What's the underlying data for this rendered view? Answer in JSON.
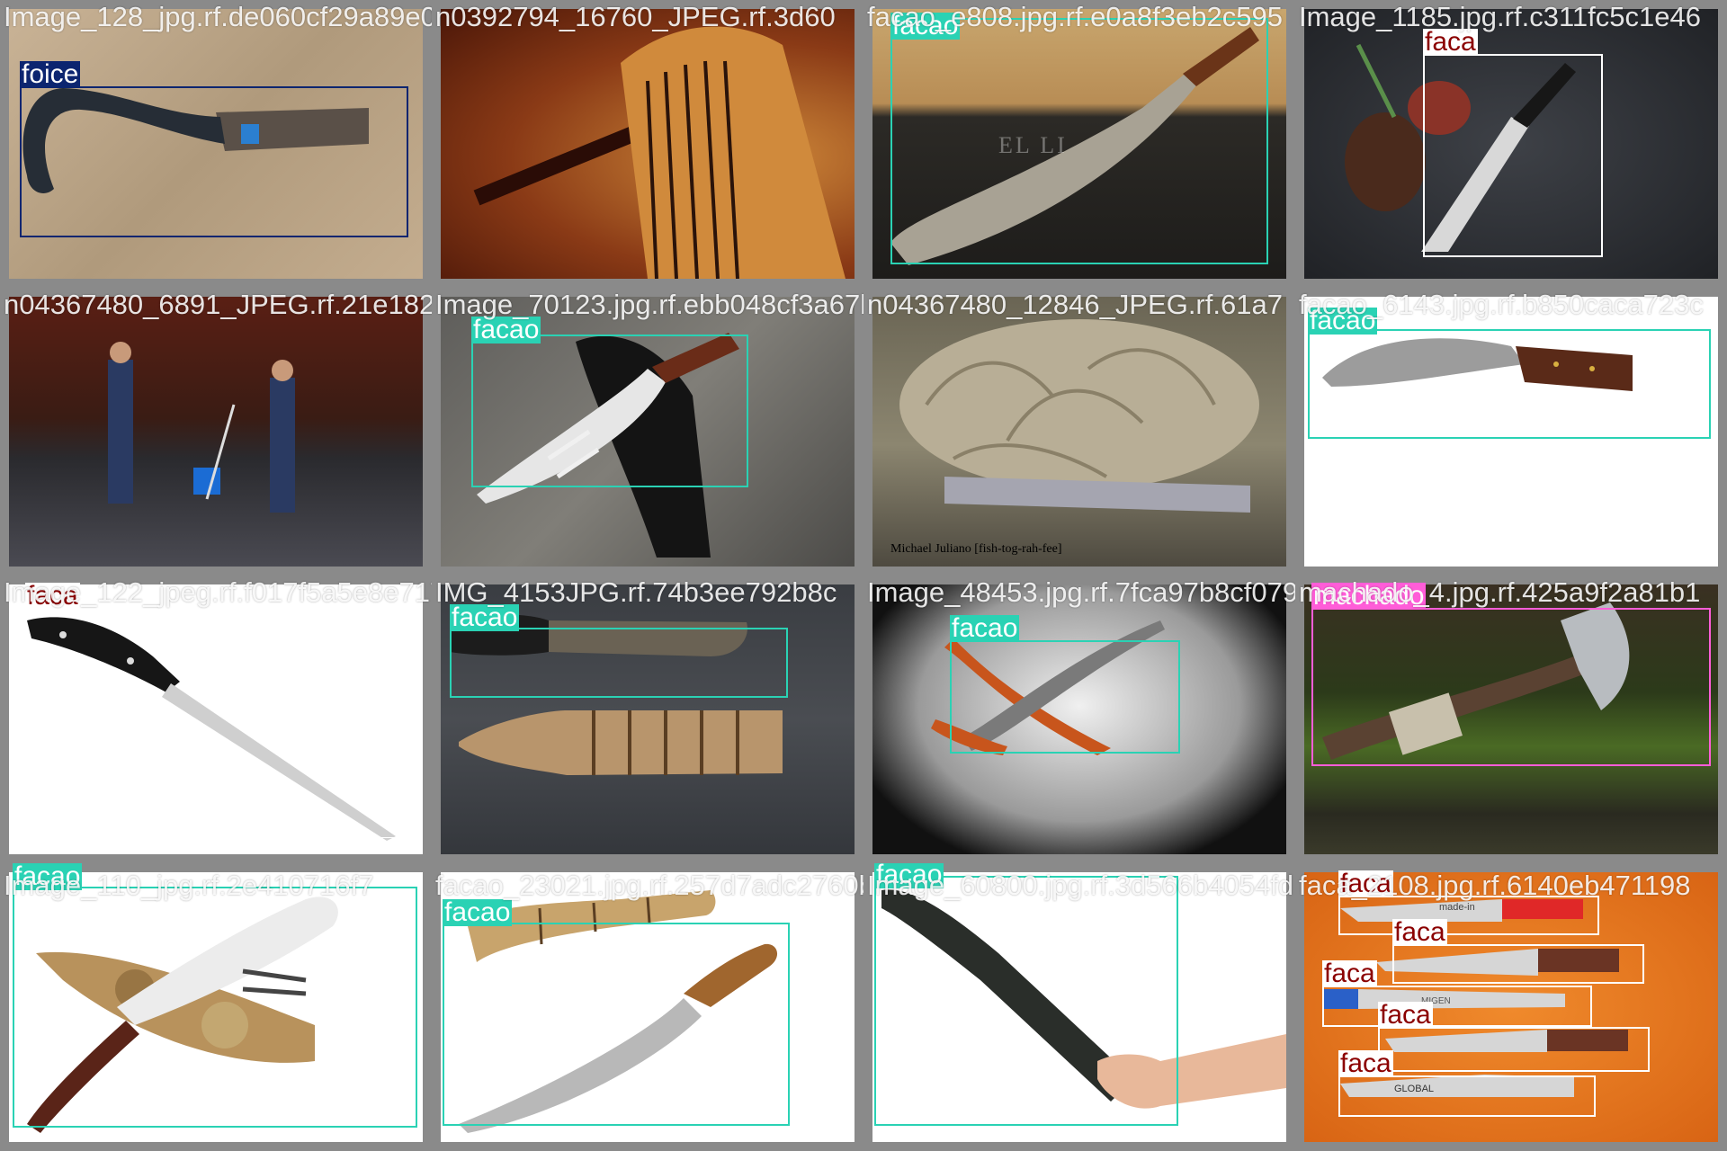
{
  "colors": {
    "faca": "#ffffff",
    "facao": "#2ad2b4",
    "foice": "#0c2570",
    "machado": "#ff5dd8",
    "tile_border": "#8a8a8a"
  },
  "tiles": [
    {
      "filename": "Image_128_jpg.rf.de060cf29a89e0092316293a",
      "scene": "foice-sand",
      "labels": [
        "foice"
      ]
    },
    {
      "filename": "n0392794_16760_JPEG.rf.3d60",
      "scene": "broom",
      "labels": []
    },
    {
      "filename": "facao_e808.jpg.rf.e0a8f3eb2c595",
      "scene": "machete-engraved",
      "labels": [
        "facao"
      ]
    },
    {
      "filename": "Image_1185.jpg.rf.c311fc5c1e46",
      "scene": "chef-knife-steak",
      "labels": [
        "faca"
      ]
    },
    {
      "filename": "n04367480_6891_JPEG.rf.21e182b7247012335",
      "scene": "mopping",
      "labels": []
    },
    {
      "filename": "Image_70123.jpg.rf.ebb048cf3a67b",
      "scene": "kukri-sheath",
      "labels": [
        "facao"
      ]
    },
    {
      "filename": "n04367480_12846_JPEG.rf.61a7",
      "scene": "mop-head",
      "labels": []
    },
    {
      "filename": "facao_6143.jpg.rf.b850caca723c",
      "scene": "kukri-white",
      "labels": [
        "facao"
      ]
    },
    {
      "filename": "Image_122_jpeg.rf.f017f5a5e8e717f04d",
      "scene": "paring-knife",
      "labels": [
        "faca"
      ]
    },
    {
      "filename": "IMG_4153JPG.rf.74b3ee792b8c",
      "scene": "machete-scabbard",
      "labels": [
        "facao"
      ]
    },
    {
      "filename": "Image_48453.jpg.rf.7fca97b8cf079",
      "scene": "sword-dark",
      "labels": [
        "facao"
      ]
    },
    {
      "filename": "machado_4.jpg.rf.425a9f2a81b1",
      "scene": "axe-moss",
      "labels": [
        "machado"
      ]
    },
    {
      "filename": "Image_110_jpg.rf.2e410716f7",
      "scene": "kukri-camo",
      "labels": [
        "facao"
      ]
    },
    {
      "filename": "facao_23021.jpg.rf.257d7adc2760b",
      "scene": "machete-wood",
      "labels": [
        "facao"
      ]
    },
    {
      "filename": "Image_60800.jpg.rf.3d566b4054fd",
      "scene": "machete-hand",
      "labels": [
        "facao"
      ]
    },
    {
      "filename": "faca_2108.jpg.rf.6140eb471198",
      "scene": "knife-set",
      "labels": [
        "faca",
        "faca",
        "faca",
        "faca",
        "faca"
      ]
    }
  ],
  "watermarks": {
    "tile_6": "Michael Juliano [fish-tog-rah-fee]",
    "tile_2": "EL LI"
  },
  "blade_brands": [
    "made-in",
    "MIGEN",
    "GLOBAL"
  ]
}
